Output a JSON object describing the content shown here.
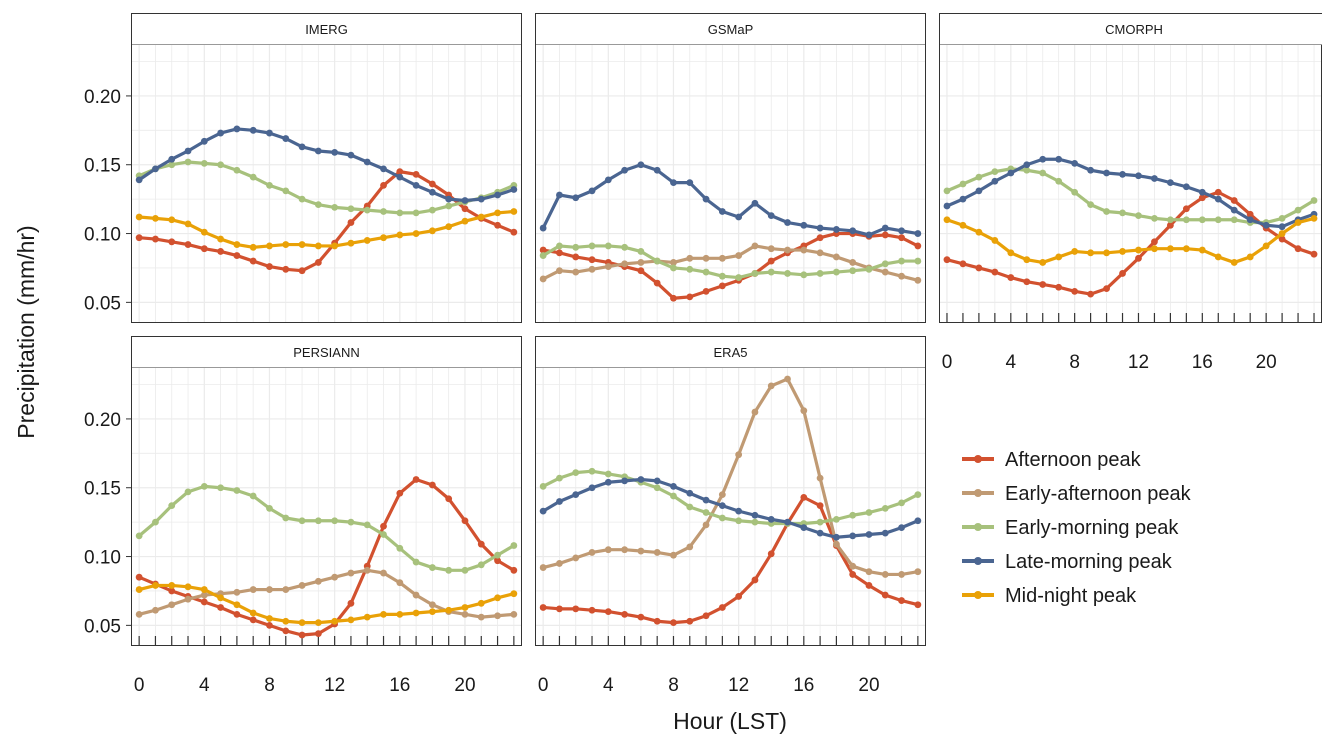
{
  "chart_data": {
    "type": "line",
    "xlabel": "Hour (LST)",
    "ylabel": "Precipitation (mm/hr)",
    "xlim": [
      -0.5,
      23.5
    ],
    "ylim": [
      0.035,
      0.237
    ],
    "x_ticks": [
      "0",
      "4",
      "8",
      "12",
      "16",
      "20"
    ],
    "y_ticks": [
      "0.05",
      "0.10",
      "0.15",
      "0.20"
    ],
    "x": [
      0,
      1,
      2,
      3,
      4,
      5,
      6,
      7,
      8,
      9,
      10,
      11,
      12,
      13,
      14,
      15,
      16,
      17,
      18,
      19,
      20,
      21,
      22,
      23
    ],
    "colors": {
      "Afternoon peak": "#D2512F",
      "Early-afternoon peak": "#C09A73",
      "Early-morning peak": "#A7C17C",
      "Late-morning peak": "#4A6591",
      "Mid-night peak": "#E9A107"
    },
    "legend": {
      "position": "right",
      "entries": [
        "Afternoon peak",
        "Early-afternoon peak",
        "Early-morning peak",
        "Late-morning peak",
        "Mid-night peak"
      ]
    },
    "panels": [
      {
        "title": "IMERG",
        "series": [
          {
            "name": "Afternoon peak",
            "values": [
              0.097,
              0.096,
              0.094,
              0.092,
              0.089,
              0.087,
              0.084,
              0.08,
              0.076,
              0.074,
              0.073,
              0.079,
              0.093,
              0.108,
              0.12,
              0.135,
              0.145,
              0.143,
              0.136,
              0.128,
              0.118,
              0.111,
              0.106,
              0.101
            ]
          },
          {
            "name": "Early-morning peak",
            "values": [
              0.142,
              0.147,
              0.15,
              0.152,
              0.151,
              0.15,
              0.146,
              0.141,
              0.135,
              0.131,
              0.125,
              0.121,
              0.119,
              0.118,
              0.117,
              0.116,
              0.115,
              0.115,
              0.117,
              0.12,
              0.123,
              0.126,
              0.13,
              0.135
            ]
          },
          {
            "name": "Late-morning peak",
            "values": [
              0.139,
              0.147,
              0.154,
              0.16,
              0.167,
              0.173,
              0.176,
              0.175,
              0.173,
              0.169,
              0.163,
              0.16,
              0.159,
              0.157,
              0.152,
              0.147,
              0.141,
              0.135,
              0.13,
              0.125,
              0.124,
              0.125,
              0.128,
              0.132
            ]
          },
          {
            "name": "Mid-night peak",
            "values": [
              0.112,
              0.111,
              0.11,
              0.107,
              0.101,
              0.096,
              0.092,
              0.09,
              0.091,
              0.092,
              0.092,
              0.091,
              0.091,
              0.093,
              0.095,
              0.097,
              0.099,
              0.1,
              0.102,
              0.105,
              0.109,
              0.112,
              0.115,
              0.116
            ]
          }
        ]
      },
      {
        "title": "GSMaP",
        "series": [
          {
            "name": "Afternoon peak",
            "values": [
              0.088,
              0.086,
              0.083,
              0.081,
              0.079,
              0.076,
              0.073,
              0.064,
              0.053,
              0.054,
              0.058,
              0.062,
              0.066,
              0.071,
              0.08,
              0.086,
              0.091,
              0.097,
              0.1,
              0.1,
              0.098,
              0.099,
              0.097,
              0.091
            ]
          },
          {
            "name": "Early-afternoon peak",
            "values": [
              0.067,
              0.073,
              0.072,
              0.074,
              0.076,
              0.078,
              0.079,
              0.08,
              0.079,
              0.082,
              0.082,
              0.082,
              0.084,
              0.091,
              0.089,
              0.088,
              0.088,
              0.086,
              0.083,
              0.079,
              0.075,
              0.072,
              0.069,
              0.066
            ]
          },
          {
            "name": "Early-morning peak",
            "values": [
              0.084,
              0.091,
              0.09,
              0.091,
              0.091,
              0.09,
              0.087,
              0.08,
              0.075,
              0.074,
              0.072,
              0.069,
              0.068,
              0.071,
              0.072,
              0.071,
              0.07,
              0.071,
              0.072,
              0.073,
              0.074,
              0.078,
              0.08,
              0.08
            ]
          },
          {
            "name": "Late-morning peak",
            "values": [
              0.104,
              0.128,
              0.126,
              0.131,
              0.139,
              0.146,
              0.15,
              0.146,
              0.137,
              0.137,
              0.125,
              0.116,
              0.112,
              0.122,
              0.113,
              0.108,
              0.106,
              0.104,
              0.103,
              0.102,
              0.099,
              0.104,
              0.102,
              0.1
            ]
          }
        ]
      },
      {
        "title": "CMORPH",
        "series": [
          {
            "name": "Afternoon peak",
            "values": [
              0.081,
              0.078,
              0.075,
              0.072,
              0.068,
              0.065,
              0.063,
              0.061,
              0.058,
              0.056,
              0.06,
              0.071,
              0.082,
              0.094,
              0.106,
              0.118,
              0.126,
              0.13,
              0.124,
              0.114,
              0.104,
              0.096,
              0.089,
              0.085
            ]
          },
          {
            "name": "Early-morning peak",
            "values": [
              0.131,
              0.136,
              0.141,
              0.145,
              0.147,
              0.146,
              0.144,
              0.138,
              0.13,
              0.121,
              0.116,
              0.115,
              0.113,
              0.111,
              0.11,
              0.11,
              0.11,
              0.11,
              0.11,
              0.108,
              0.108,
              0.111,
              0.117,
              0.124
            ]
          },
          {
            "name": "Late-morning peak",
            "values": [
              0.12,
              0.125,
              0.131,
              0.138,
              0.144,
              0.15,
              0.154,
              0.154,
              0.151,
              0.146,
              0.144,
              0.143,
              0.142,
              0.14,
              0.137,
              0.134,
              0.13,
              0.125,
              0.117,
              0.11,
              0.106,
              0.105,
              0.11,
              0.114
            ]
          },
          {
            "name": "Mid-night peak",
            "values": [
              0.11,
              0.106,
              0.101,
              0.095,
              0.086,
              0.081,
              0.079,
              0.083,
              0.087,
              0.086,
              0.086,
              0.087,
              0.088,
              0.089,
              0.089,
              0.089,
              0.088,
              0.083,
              0.079,
              0.083,
              0.091,
              0.1,
              0.108,
              0.111
            ]
          }
        ]
      },
      {
        "title": "PERSIANN",
        "series": [
          {
            "name": "Afternoon peak",
            "values": [
              0.085,
              0.08,
              0.075,
              0.071,
              0.067,
              0.063,
              0.058,
              0.054,
              0.05,
              0.046,
              0.043,
              0.044,
              0.051,
              0.066,
              0.093,
              0.122,
              0.146,
              0.156,
              0.152,
              0.142,
              0.126,
              0.109,
              0.097,
              0.09
            ]
          },
          {
            "name": "Early-afternoon peak",
            "values": [
              0.058,
              0.061,
              0.065,
              0.069,
              0.072,
              0.073,
              0.074,
              0.076,
              0.076,
              0.076,
              0.079,
              0.082,
              0.085,
              0.088,
              0.09,
              0.088,
              0.081,
              0.072,
              0.065,
              0.06,
              0.058,
              0.056,
              0.057,
              0.058
            ]
          },
          {
            "name": "Early-morning peak",
            "values": [
              0.115,
              0.125,
              0.137,
              0.147,
              0.151,
              0.15,
              0.148,
              0.144,
              0.135,
              0.128,
              0.126,
              0.126,
              0.126,
              0.125,
              0.123,
              0.116,
              0.106,
              0.096,
              0.092,
              0.09,
              0.09,
              0.094,
              0.101,
              0.108
            ]
          },
          {
            "name": "Mid-night peak",
            "values": [
              0.076,
              0.079,
              0.079,
              0.078,
              0.076,
              0.07,
              0.065,
              0.059,
              0.055,
              0.053,
              0.052,
              0.052,
              0.053,
              0.054,
              0.056,
              0.058,
              0.058,
              0.059,
              0.06,
              0.061,
              0.063,
              0.066,
              0.07,
              0.073
            ]
          }
        ]
      },
      {
        "title": "ERA5",
        "series": [
          {
            "name": "Afternoon peak",
            "values": [
              0.063,
              0.062,
              0.062,
              0.061,
              0.06,
              0.058,
              0.056,
              0.053,
              0.052,
              0.053,
              0.057,
              0.063,
              0.071,
              0.083,
              0.102,
              0.124,
              0.143,
              0.137,
              0.108,
              0.087,
              0.079,
              0.072,
              0.068,
              0.065
            ]
          },
          {
            "name": "Early-afternoon peak",
            "values": [
              0.092,
              0.095,
              0.099,
              0.103,
              0.105,
              0.105,
              0.104,
              0.103,
              0.101,
              0.107,
              0.123,
              0.145,
              0.174,
              0.205,
              0.224,
              0.229,
              0.206,
              0.157,
              0.109,
              0.093,
              0.089,
              0.087,
              0.087,
              0.089
            ]
          },
          {
            "name": "Early-morning peak",
            "values": [
              0.151,
              0.157,
              0.161,
              0.162,
              0.16,
              0.158,
              0.154,
              0.15,
              0.144,
              0.136,
              0.132,
              0.128,
              0.126,
              0.125,
              0.124,
              0.124,
              0.124,
              0.125,
              0.127,
              0.13,
              0.132,
              0.135,
              0.139,
              0.145
            ]
          },
          {
            "name": "Late-morning peak",
            "values": [
              0.133,
              0.14,
              0.145,
              0.15,
              0.154,
              0.155,
              0.156,
              0.155,
              0.151,
              0.146,
              0.141,
              0.137,
              0.133,
              0.13,
              0.127,
              0.125,
              0.121,
              0.117,
              0.114,
              0.115,
              0.116,
              0.117,
              0.121,
              0.126
            ]
          }
        ]
      }
    ]
  }
}
